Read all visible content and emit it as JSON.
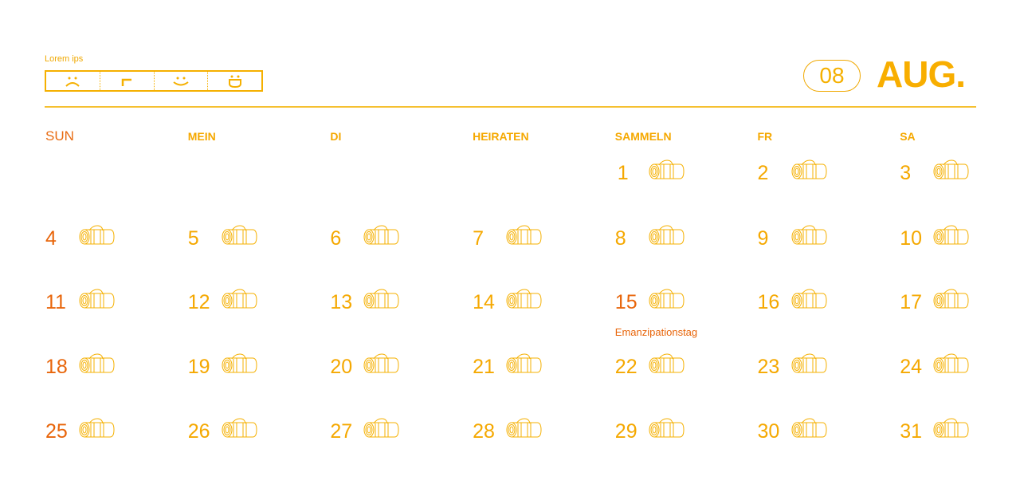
{
  "mood": {
    "label": "Lorem ips",
    "icons": [
      "sad-face-icon",
      "neutral-face-icon",
      "smile-face-icon",
      "grin-face-icon"
    ]
  },
  "header": {
    "month_number": "08",
    "month_name": "AUG."
  },
  "colors": {
    "accent": "#f5a800",
    "sunday": "#e8650a"
  },
  "weekdays": [
    "SUN",
    "MEIN",
    "DI",
    "HEIRATEN",
    "SAMMELN",
    "FR",
    "SA"
  ],
  "weeks": [
    [
      null,
      null,
      null,
      null,
      "1",
      "2",
      "3"
    ],
    [
      "4",
      "5",
      "6",
      "7",
      "8",
      "9",
      "10"
    ],
    [
      "11",
      "12",
      "13",
      "14",
      "15",
      "16",
      "17"
    ],
    [
      "18",
      "19",
      "20",
      "21",
      "22",
      "23",
      "24"
    ],
    [
      "25",
      "26",
      "27",
      "28",
      "29",
      "30",
      "31"
    ]
  ],
  "holidays": [
    "15"
  ],
  "notes": [
    {
      "day": "22",
      "text": "Emanzipationstag"
    }
  ],
  "day_icon": "yoga-mat-icon"
}
